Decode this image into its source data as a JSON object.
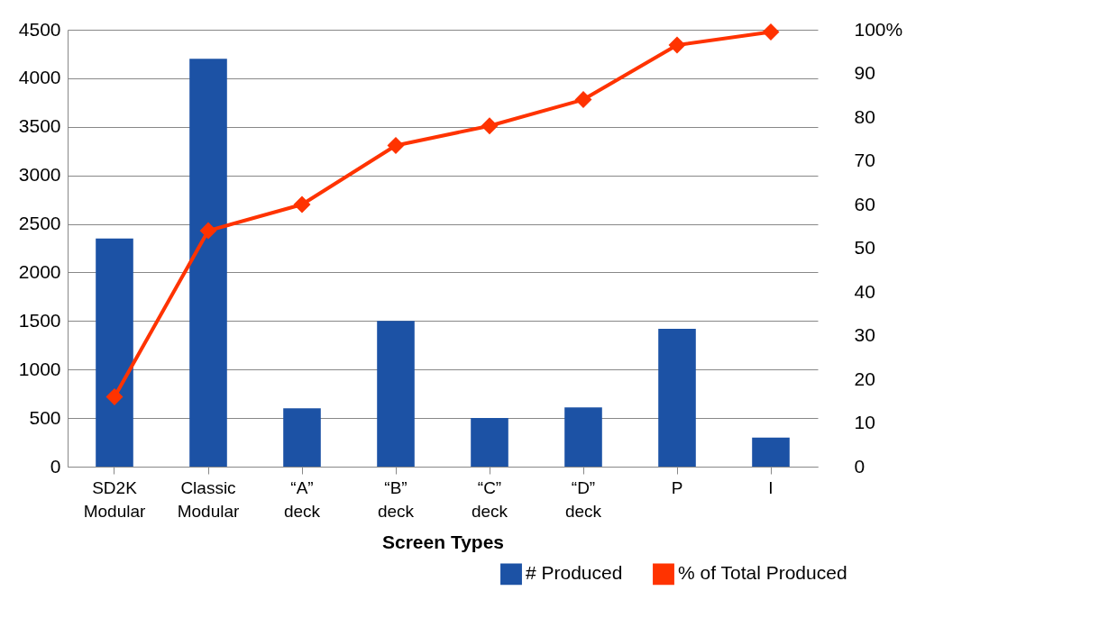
{
  "chart_data": {
    "type": "bar",
    "xlabel": "Screen Types",
    "categories": [
      "SD2K Modular",
      "Classic Modular",
      "“A” deck",
      "“B” deck",
      "“C” deck",
      "“D” deck",
      "P",
      "I"
    ],
    "series": [
      {
        "name": "# Produced",
        "color": "#1c52a5",
        "values": [
          2350,
          4200,
          600,
          1500,
          500,
          610,
          1420,
          300
        ]
      },
      {
        "name": "% of Total Produced",
        "type": "line",
        "axis": "y2",
        "color": "#ff3300",
        "values": [
          16,
          54,
          60,
          73.5,
          78,
          84,
          96.5,
          99.5
        ]
      }
    ],
    "ylim": [
      0,
      4500
    ],
    "yticks": [
      0,
      500,
      1000,
      1500,
      2000,
      2500,
      3000,
      3500,
      4000,
      4500
    ],
    "y2lim": [
      0,
      100
    ],
    "y2ticks": [
      0,
      10,
      20,
      30,
      40,
      50,
      60,
      70,
      80,
      90,
      {
        "value": 100,
        "label": "100%"
      }
    ],
    "grid": "y",
    "legend": "bottom right",
    "marker": "diamond",
    "line_style": "solid"
  }
}
